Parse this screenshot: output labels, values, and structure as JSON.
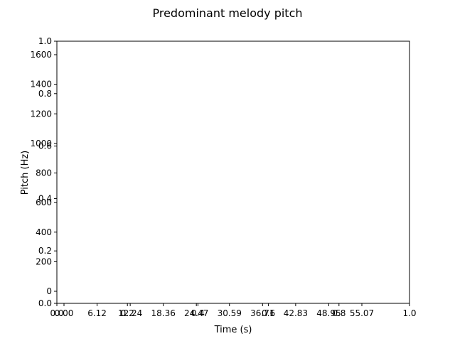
{
  "chart_data": {
    "type": "line",
    "title": "Predominant melody pitch",
    "xlabel": "Time (s)",
    "ylabel": "Pitch (Hz)",
    "xlim": [
      0.0,
      1.0
    ],
    "ylim": [
      0.0,
      1.0
    ],
    "grid": false,
    "x_tick_labels": [
      "0.0",
      "0.2",
      "0.4",
      "0.6",
      "0.8",
      "1.0"
    ],
    "y_tick_labels": [
      "0.0",
      "0.2",
      "0.4",
      "0.6",
      "0.8",
      "1.0"
    ],
    "time_ticks": [
      "0.00",
      "6.12",
      "12.24",
      "18.36",
      "24.47",
      "30.59",
      "36.71",
      "42.83",
      "48.95",
      "55.07"
    ],
    "pitch_ticks": [
      "0",
      "200",
      "400",
      "600",
      "800",
      "1000",
      "1200",
      "1400",
      "1600"
    ],
    "series": []
  }
}
